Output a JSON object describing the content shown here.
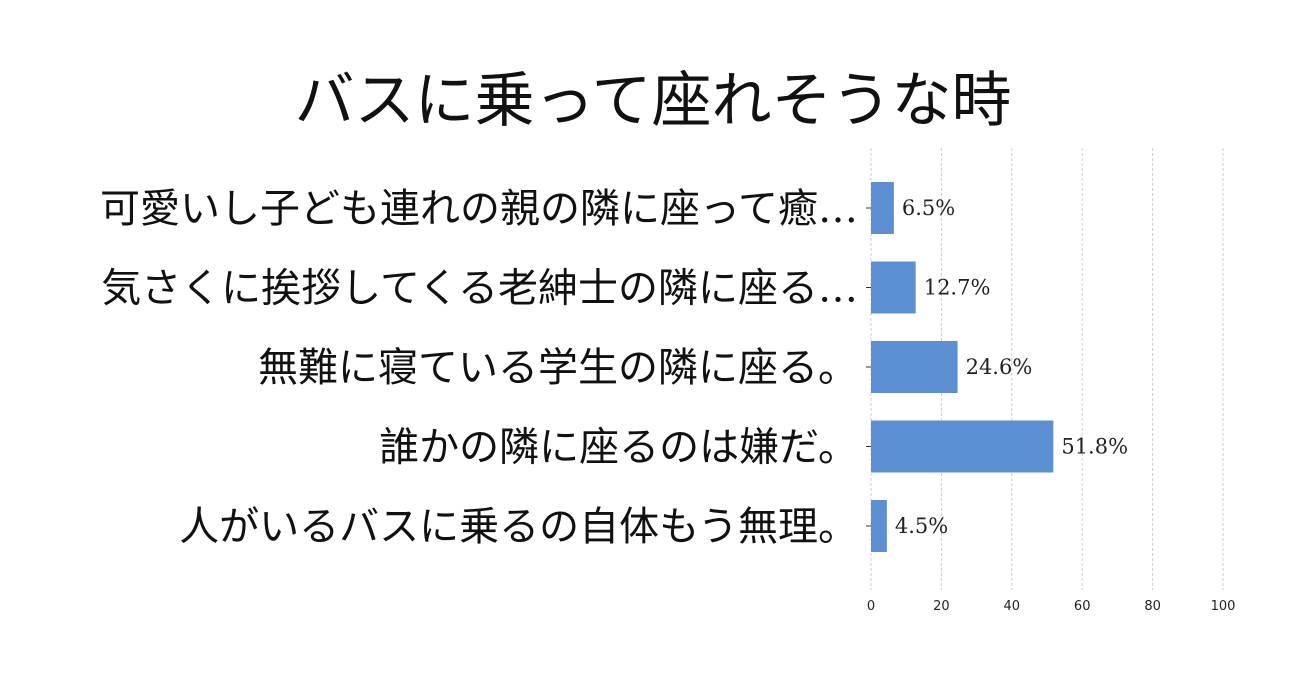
{
  "chart_data": {
    "type": "bar",
    "orientation": "horizontal",
    "title": "バスに乗って座れそうな時",
    "categories": [
      "可愛いし子ども連れの親の隣に座って癒…",
      "気さくに挨拶してくる老紳士の隣に座る…",
      "無難に寝ている学生の隣に座る。",
      "誰かの隣に座るのは嫌だ。",
      "人がいるバスに乗るの自体もう無理。"
    ],
    "values": [
      6.5,
      12.7,
      24.6,
      51.8,
      4.5
    ],
    "value_labels": [
      "6.5%",
      "12.7%",
      "24.6%",
      "51.8%",
      "4.5%"
    ],
    "xlim": [
      0,
      100
    ],
    "xticks": [
      "0",
      "20",
      "40",
      "60",
      "80",
      "100"
    ],
    "xlabel": "",
    "ylabel": "",
    "grid": "vertical dashed",
    "bar_color": "#5b8fd2",
    "grid_color": "#cccccc"
  }
}
